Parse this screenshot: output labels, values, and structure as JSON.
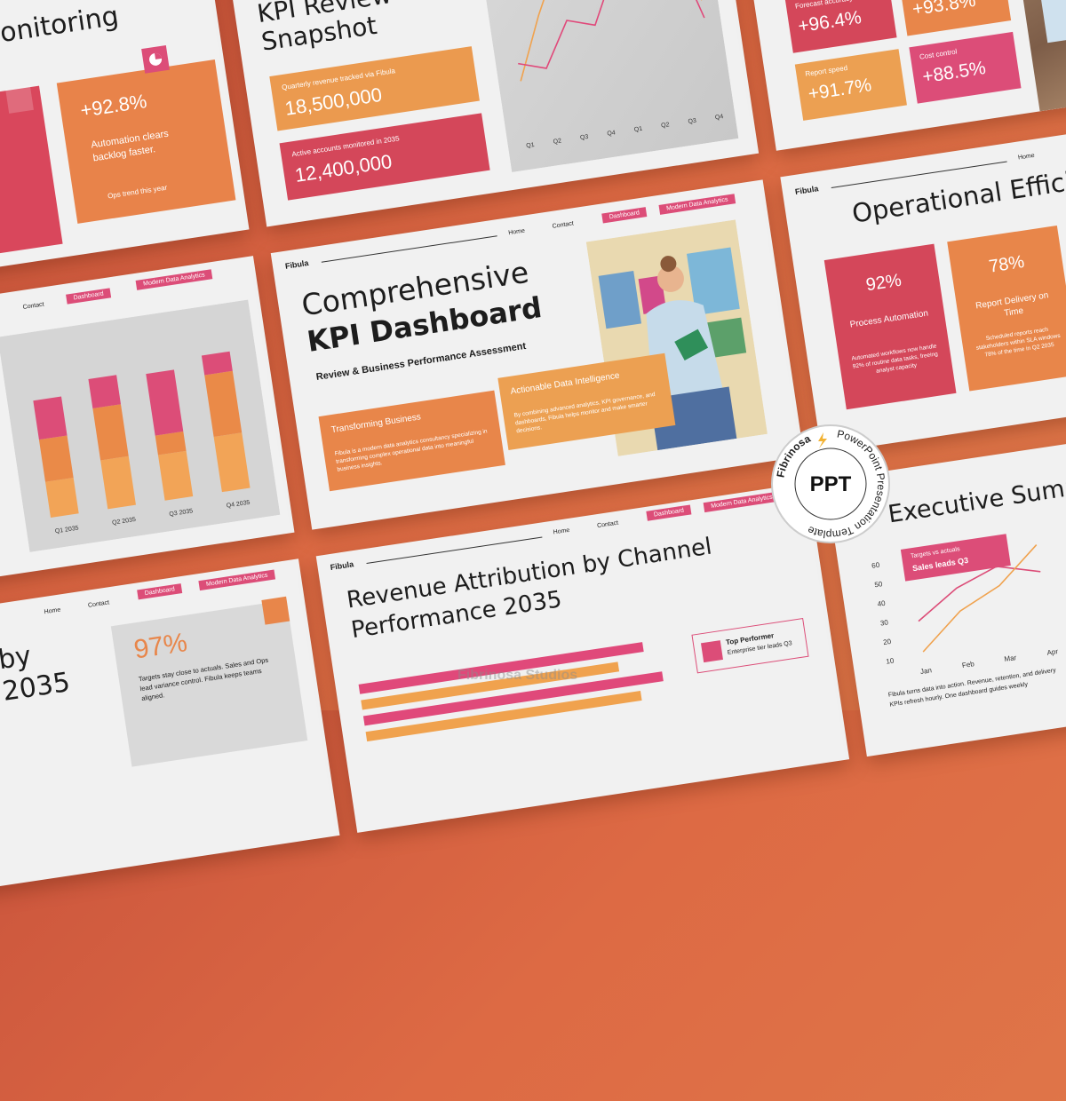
{
  "brand": "Fibula",
  "nav": {
    "home": "Home",
    "contact": "Contact",
    "dashboard": "Dashboard",
    "analytics": "Modern Data Analytics"
  },
  "cover": {
    "title_line1": "Comprehensive",
    "title_line2": "KPI Dashboard",
    "subtitle": "Review & Business Performance Assessment",
    "card1": {
      "title": "Transforming Business",
      "text": "Fibula is a modern data analytics consultancy specializing in transforming complex operational data into meaningful business insights."
    },
    "card2": {
      "title": "Actionable Data Intelligence",
      "text": "By combining advanced analytics, KPI governance, and dashboards, Fibula helps monitor and make smarter decisions."
    }
  },
  "snapshot": {
    "title_line1": "KPI Review",
    "title_line2": "Snapshot",
    "card1": {
      "label": "Quarterly revenue tracked via Fibula",
      "value": "18,500,000"
    },
    "card2": {
      "label": "Active accounts monitored in 2035",
      "value": "12,400,000"
    },
    "chart": {
      "type": "line",
      "categories": [
        "Q1",
        "Q2",
        "Q3",
        "Q4",
        "Q1",
        "Q2",
        "Q3",
        "Q4"
      ],
      "ylim": [
        0,
        100
      ],
      "series": [
        {
          "color": "#f0a24e",
          "values": [
            15,
            50,
            80,
            100,
            60,
            85,
            100,
            45
          ]
        },
        {
          "color": "#e0497a",
          "values": [
            25,
            20,
            45,
            40,
            70,
            55,
            90,
            35
          ]
        }
      ]
    }
  },
  "monitoring": {
    "title": "Monitoring",
    "value": "+92.8%",
    "text": "Automation clears backlog faster.",
    "footnote": "Ops trend this year"
  },
  "forecast": {
    "cards": [
      {
        "label": "Forecast accuracy",
        "value": "+96.4%"
      },
      {
        "value": "+93.8%"
      },
      {
        "label": "Report speed",
        "value": "+91.7%"
      },
      {
        "label": "Cost control",
        "value": "+88.5%"
      }
    ]
  },
  "operational": {
    "title": "Operational Efficiency",
    "cards": [
      {
        "value": "92%",
        "title": "Process Automation",
        "text": "Automated workflows now handle 92% of routine data tasks, freeing analyst capacity"
      },
      {
        "value": "78%",
        "title": "Report Delivery on Time",
        "text": "Scheduled reports reach stakeholders within SLA windows 78% of the time in Q2 2035"
      }
    ]
  },
  "quarterly": {
    "chart": {
      "type": "bar",
      "stacked": true,
      "categories": [
        "Q1 2035",
        "Q2 2035",
        "Q3 2035",
        "Q4 2035"
      ],
      "ylim": [
        0,
        100
      ],
      "series": [
        {
          "color": "#f2a457",
          "values": [
            22,
            30,
            28,
            34
          ]
        },
        {
          "color": "#ea8a48",
          "values": [
            26,
            32,
            12,
            38
          ]
        },
        {
          "color": "#dc4d78",
          "values": [
            24,
            18,
            38,
            12
          ]
        }
      ]
    }
  },
  "executive": {
    "title": "Executive Summary",
    "callout_label": "Targets vs actuals",
    "callout_text": "Sales leads Q3",
    "chart": {
      "type": "line",
      "categories": [
        "Jan",
        "Feb",
        "Mar",
        "Apr"
      ],
      "ylim": [
        10,
        65
      ],
      "yticks": [
        10,
        20,
        30,
        40,
        50,
        60
      ],
      "series": [
        {
          "color": "#dc4d78",
          "values": [
            28,
            42,
            50,
            44
          ]
        },
        {
          "color": "#f0a24e",
          "values": [
            12,
            30,
            40,
            58
          ]
        }
      ]
    },
    "text": "Fibula turns data into action. Revenue, retention, and delivery KPIs refresh hourly. One dashboard guides weekly"
  },
  "revenue": {
    "title_line1": "Revenue Attribution by Channel",
    "title_line2": "Performance 2035",
    "callout_title": "Top Performer",
    "callout_text": "Enterprise tier leads Q3",
    "chart": {
      "type": "bar",
      "orientation": "horizontal",
      "xlim": [
        0,
        100
      ],
      "bars": [
        {
          "color": "#e0497a",
          "value": 95
        },
        {
          "color": "#f0a24e",
          "value": 86
        },
        {
          "color": "#e0497a",
          "value": 100
        },
        {
          "color": "#f0a24e",
          "value": 92
        }
      ]
    }
  },
  "outlook": {
    "title_line1": "by",
    "title_line2": "2035",
    "value": "97%",
    "text": "Targets stay close to actuals. Sales and Ops lead variance control. Fibula keeps teams aligned."
  },
  "badge": {
    "brand": "Fibrinosa",
    "text": "PowerPoint Presentation Template",
    "label": "PPT"
  },
  "watermark": "Fibrinosa Studios"
}
